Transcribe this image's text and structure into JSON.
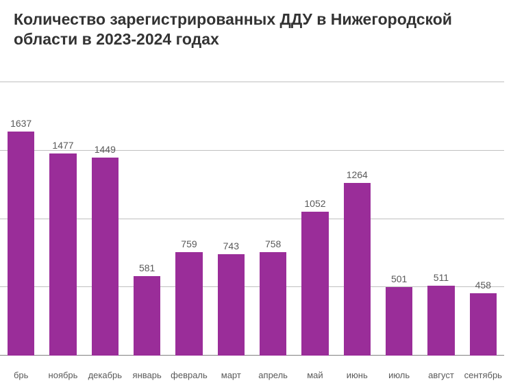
{
  "chart": {
    "type": "bar",
    "title": "Количество зарегистрированных ДДУ в Нижегородской области в 2023-2024 годах",
    "title_fontsize": 23,
    "title_color": "#333333",
    "categories": [
      "брь",
      "ноябрь",
      "декабрь",
      "январь",
      "февраль",
      "март",
      "апрель",
      "май",
      "июнь",
      "июль",
      "август",
      "сентябрь"
    ],
    "values": [
      1637,
      1477,
      1449,
      581,
      759,
      743,
      758,
      1052,
      1264,
      501,
      511,
      458
    ],
    "bar_color": "#9a2d99",
    "value_label_color": "#595959",
    "value_label_fontsize": 14,
    "xlabel_fontsize": 13,
    "xlabel_color": "#595959",
    "ylim": [
      0,
      2000
    ],
    "ytick_step": 500,
    "grid_color": "#bfbfbf",
    "axis_color": "#808080",
    "background_color": "#ffffff",
    "bar_width_ratio": 0.64
  }
}
